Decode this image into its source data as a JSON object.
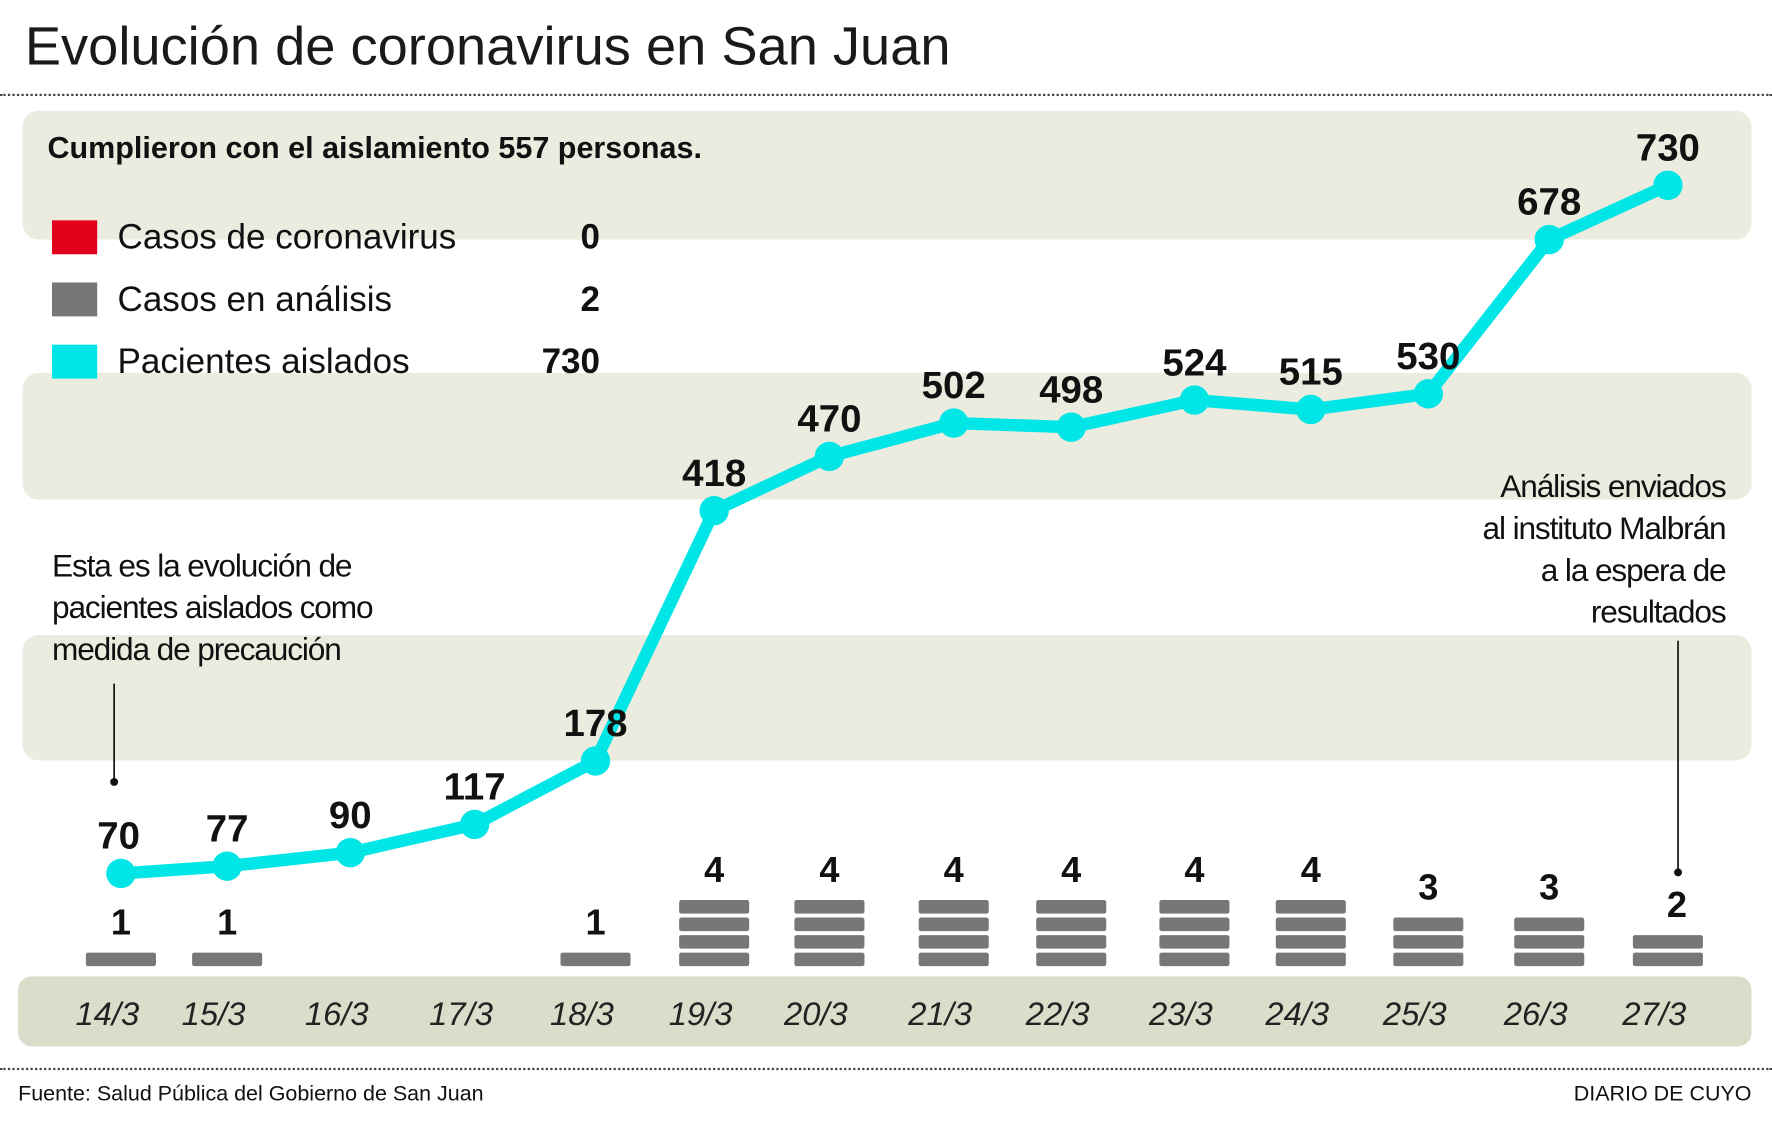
{
  "header": {
    "title": "Evolución de coronavirus en San Juan"
  },
  "subtitle": "Cumplieron con el aislamiento 557 personas.",
  "legend": [
    {
      "label": "Casos de coronavirus",
      "value": "0",
      "color": "#e2001a"
    },
    {
      "label": "Casos en análisis",
      "value": "2",
      "color": "#777777"
    },
    {
      "label": "Pacientes aislados",
      "value": "730",
      "color": "#00e5e5"
    }
  ],
  "annotations": {
    "left": [
      "Esta es la evolución de",
      "pacientes aislados como",
      "medida de precaución"
    ],
    "right": [
      "Análisis enviados",
      "al instituto Malbrán",
      "a la espera de",
      "resultados"
    ]
  },
  "footer": {
    "source": "Fuente: Salud Pública del Gobierno de San Juan",
    "brand": "DIARIO DE CUYO"
  },
  "chart_data": {
    "type": "line",
    "title": "Evolución de coronavirus en San Juan",
    "categories": [
      "14/3",
      "15/3",
      "16/3",
      "17/3",
      "18/3",
      "19/3",
      "20/3",
      "21/3",
      "22/3",
      "23/3",
      "24/3",
      "25/3",
      "26/3",
      "27/3"
    ],
    "series": [
      {
        "name": "Pacientes aislados",
        "type": "line",
        "color": "#00e5e5",
        "values": [
          70,
          77,
          90,
          117,
          178,
          418,
          470,
          502,
          498,
          524,
          515,
          530,
          678,
          730
        ]
      },
      {
        "name": "Casos en análisis",
        "type": "stacked-blocks",
        "color": "#777777",
        "values": [
          1,
          1,
          0,
          0,
          1,
          4,
          4,
          4,
          4,
          4,
          4,
          3,
          3,
          2
        ]
      }
    ],
    "ylim": [
      70,
      730
    ],
    "grid": false
  }
}
